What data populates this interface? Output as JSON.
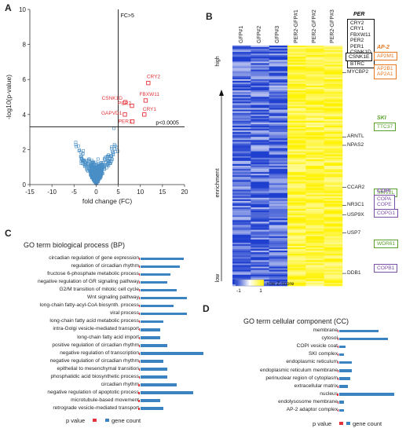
{
  "panels": {
    "a": "A",
    "b": "B",
    "c": "C",
    "d": "D"
  },
  "chart_data": [
    {
      "type": "scatter",
      "panel": "A",
      "xlabel": "fold change (FC)",
      "ylabel": "-log10(p-value)",
      "xlim": [
        -15,
        20
      ],
      "ylim": [
        0,
        10
      ],
      "xticks": [
        -15,
        -10,
        -5,
        0,
        5,
        10,
        15,
        20
      ],
      "yticks": [
        0,
        2,
        4,
        6,
        8,
        10
      ],
      "threshold_x": 5,
      "threshold_y": 3.3,
      "annotation_fc": "FC>5",
      "annotation_p": "p<0.0005",
      "highlighted": [
        {
          "name": "CRY2",
          "x": 11.8,
          "y": 5.8
        },
        {
          "name": "CSNK1D",
          "x": 6.6,
          "y": 4.7
        },
        {
          "name": "FBXW11",
          "x": 11.2,
          "y": 4.8
        },
        {
          "name": "PER2",
          "x": 8.1,
          "y": 4.5
        },
        {
          "name": "GAPVD1",
          "x": 6.5,
          "y": 4.0
        },
        {
          "name": "CRY1",
          "x": 10.9,
          "y": 4.0
        },
        {
          "name": "PER1",
          "x": 8.2,
          "y": 3.6
        }
      ]
    },
    {
      "type": "heatmap",
      "panel": "B",
      "columns": [
        "GFP#1",
        "GFP#2",
        "GFP#3",
        "PER2-GFP#1",
        "PER2-GFP#2",
        "PER2-GFP#3"
      ],
      "axis_label": "enrichment",
      "axis_high": "high",
      "axis_low": "low",
      "colorbar_label": "row Z-score",
      "colorbar_min": "-1",
      "colorbar_max": "1",
      "colors": {
        "low": "#1f3fcf",
        "mid": "#ffffff",
        "high": "#fff200"
      },
      "row_labels": [
        {
          "name": "MYCBP2",
          "pos": 0.112
        },
        {
          "name": "ARNTL",
          "pos": 0.38
        },
        {
          "name": "NPAS2",
          "pos": 0.415
        },
        {
          "name": "CCAR2",
          "pos": 0.59
        },
        {
          "name": "NR3C1",
          "pos": 0.665
        },
        {
          "name": "USP9X",
          "pos": 0.705
        },
        {
          "name": "USP7",
          "pos": 0.78
        },
        {
          "name": "DDB1",
          "pos": 0.948
        }
      ],
      "groups": [
        {
          "title": "PER",
          "color": "#111111",
          "genes": [
            "CRY2",
            "CRY1",
            "FBXW11",
            "PER2",
            "PER1",
            "CSNK1D",
            "GAPVD1",
            "BTRC"
          ]
        },
        {
          "title": "",
          "color": "#111111",
          "genes": [
            "CSNK1E"
          ]
        },
        {
          "title": "AP-2",
          "color": "#e87722",
          "genes": [
            "AP2M1"
          ]
        },
        {
          "title": "",
          "color": "#e87722",
          "genes": [
            "AP2B1",
            "AP2A1"
          ]
        },
        {
          "title": "SKI",
          "color": "#5aa02c",
          "genes": [
            "TTC37"
          ]
        },
        {
          "title": "",
          "color": "#5aa02c",
          "genes": [
            "SKIV2L"
          ]
        },
        {
          "title": "COPI",
          "color": "#7b4fa8",
          "genes": [
            "COPA",
            "COPE"
          ]
        },
        {
          "title": "",
          "color": "#7b4fa8",
          "genes": [
            "COPG1"
          ]
        },
        {
          "title": "",
          "color": "#5aa02c",
          "genes": [
            "WDR61"
          ]
        },
        {
          "title": "",
          "color": "#7b4fa8",
          "genes": [
            "COPB1"
          ]
        }
      ]
    },
    {
      "type": "bar",
      "panel": "C",
      "title": "GO term biological process (BP)",
      "legend": {
        "p": "p value",
        "count": "gene count"
      },
      "categories": [
        "circadian regulation of gene expression",
        "regulation of circadian rhythm",
        "fructose 6-phosphate metabolic process",
        "negative regulation of GR signaling pathway",
        "G2/M transition of mitotic cell cycle",
        "Wnt signaling pathway",
        "long-chain fatty-acyl-CoA biosynth. process",
        "viral process",
        "long-chain fatty acid metabolic process",
        "intra-Golgi vesicle-mediated transport",
        "long-chain fatty acid import",
        "positive regulation of circadian rhythm",
        "negative regulation of transcription",
        "negative regulation of circadian rhythm",
        "epithelial to mesenchymal transition",
        "phosphatidic acid biosynthetic process",
        "circadian rhythm",
        "negative regulation of apoptotic process",
        "microtubule-based movement",
        "retrograde vesicle-mediated transport"
      ],
      "series": [
        {
          "name": "p value",
          "values": [
            0.3,
            0.3,
            0.3,
            0.3,
            0.3,
            0.3,
            0.3,
            0.3,
            0.3,
            0.3,
            0.3,
            0.3,
            0.3,
            0.3,
            0.3,
            0.3,
            0.4,
            0.5,
            0.5,
            0.4
          ]
        },
        {
          "name": "gene count",
          "values": [
            13,
            12,
            9,
            8,
            11,
            14,
            10,
            14,
            7,
            6,
            6,
            8,
            19,
            7,
            8,
            8,
            11,
            16,
            6,
            7
          ]
        }
      ]
    },
    {
      "type": "bar",
      "panel": "D",
      "title": "GO term cellular component (CC)",
      "legend": {
        "p": "p value",
        "count": "gene count"
      },
      "categories": [
        "membrane",
        "cytosol",
        "COPI vesicle coat",
        "SKI complex",
        "endoplasmic reticulum",
        "endoplasmic reticulum membrane",
        "perinuclear region of cytoplasm",
        "extracellular matrix",
        "nucleus",
        "endolysosome membrane",
        "AP-2 adaptor complex"
      ],
      "series": [
        {
          "name": "p value",
          "values": [
            0.3,
            0.3,
            0.3,
            0.3,
            0.3,
            0.3,
            0.3,
            0.3,
            0.5,
            0.3,
            0.3
          ]
        },
        {
          "name": "gene count",
          "values": [
            32,
            40,
            5,
            4,
            10,
            10,
            9,
            7,
            45,
            4,
            4
          ]
        }
      ]
    }
  ]
}
